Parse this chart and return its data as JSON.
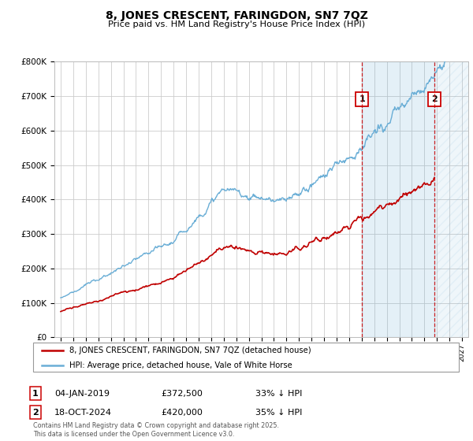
{
  "title": "8, JONES CRESCENT, FARINGDON, SN7 7QZ",
  "subtitle": "Price paid vs. HM Land Registry's House Price Index (HPI)",
  "legend_line1": "8, JONES CRESCENT, FARINGDON, SN7 7QZ (detached house)",
  "legend_line2": "HPI: Average price, detached house, Vale of White Horse",
  "annotation1_date": "04-JAN-2019",
  "annotation1_price": "£372,500",
  "annotation1_hpi": "33% ↓ HPI",
  "annotation2_date": "18-OCT-2024",
  "annotation2_price": "£420,000",
  "annotation2_hpi": "35% ↓ HPI",
  "footer": "Contains HM Land Registry data © Crown copyright and database right 2025.\nThis data is licensed under the Open Government Licence v3.0.",
  "hpi_color": "#6aaed6",
  "price_color": "#c00000",
  "annotation_color": "#cc0000",
  "marker1_x": 2019.03,
  "marker2_x": 2024.8,
  "ylim_min": 0,
  "ylim_max": 800000,
  "xlim_min": 1994.5,
  "xlim_max": 2027.5,
  "background_color": "#ffffff",
  "grid_color": "#cccccc"
}
